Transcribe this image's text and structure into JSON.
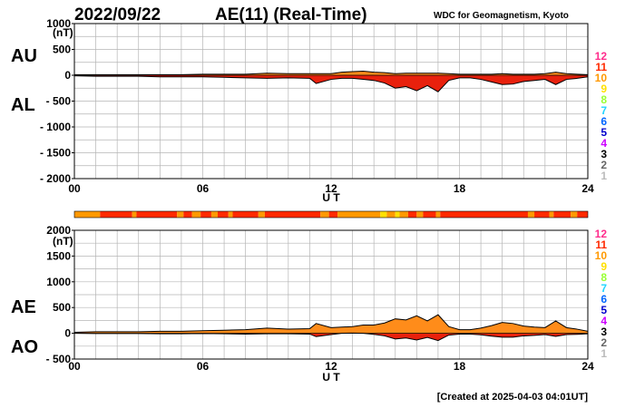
{
  "header": {
    "date": "2022/09/22",
    "title": "AE(11) (Real-Time)",
    "source": "WDC for Geomagnetism, Kyoto",
    "created": "[Created at 2025-04-03 04:01UT]"
  },
  "legend": {
    "levels": [
      {
        "label": "12",
        "color": "#ff2d8c"
      },
      {
        "label": "11",
        "color": "#ff2a00"
      },
      {
        "label": "10",
        "color": "#ff9900"
      },
      {
        "label": "9",
        "color": "#ffe000"
      },
      {
        "label": "8",
        "color": "#99ff33"
      },
      {
        "label": "7",
        "color": "#22d4ff"
      },
      {
        "label": "6",
        "color": "#0066ff"
      },
      {
        "label": "5",
        "color": "#0000cc"
      },
      {
        "label": "4",
        "color": "#cc00ff"
      },
      {
        "label": "3",
        "color": "#000000"
      },
      {
        "label": "2",
        "color": "#666666"
      },
      {
        "label": "1",
        "color": "#bbbbbb"
      }
    ]
  },
  "status_bar": {
    "segments": [
      {
        "start": 0.0,
        "end": 1.2,
        "level": "10"
      },
      {
        "start": 1.2,
        "end": 2.7,
        "level": "11"
      },
      {
        "start": 2.7,
        "end": 2.9,
        "level": "10"
      },
      {
        "start": 2.9,
        "end": 4.8,
        "level": "11"
      },
      {
        "start": 4.8,
        "end": 5.1,
        "level": "10"
      },
      {
        "start": 5.1,
        "end": 5.5,
        "level": "11"
      },
      {
        "start": 5.5,
        "end": 5.9,
        "level": "10"
      },
      {
        "start": 5.9,
        "end": 6.4,
        "level": "11"
      },
      {
        "start": 6.4,
        "end": 6.7,
        "level": "10"
      },
      {
        "start": 6.7,
        "end": 7.2,
        "level": "11"
      },
      {
        "start": 7.2,
        "end": 7.4,
        "level": "10"
      },
      {
        "start": 7.4,
        "end": 8.6,
        "level": "11"
      },
      {
        "start": 8.6,
        "end": 8.9,
        "level": "10"
      },
      {
        "start": 8.9,
        "end": 11.5,
        "level": "11"
      },
      {
        "start": 11.5,
        "end": 11.9,
        "level": "10"
      },
      {
        "start": 11.9,
        "end": 12.3,
        "level": "11"
      },
      {
        "start": 12.3,
        "end": 14.3,
        "level": "10"
      },
      {
        "start": 14.3,
        "end": 14.6,
        "level": "9"
      },
      {
        "start": 14.6,
        "end": 15.0,
        "level": "10"
      },
      {
        "start": 15.0,
        "end": 15.2,
        "level": "9"
      },
      {
        "start": 15.2,
        "end": 15.6,
        "level": "10"
      },
      {
        "start": 15.6,
        "end": 16.0,
        "level": "11"
      },
      {
        "start": 16.0,
        "end": 16.3,
        "level": "10"
      },
      {
        "start": 16.3,
        "end": 16.9,
        "level": "11"
      },
      {
        "start": 16.9,
        "end": 17.1,
        "level": "10"
      },
      {
        "start": 17.1,
        "end": 21.2,
        "level": "11"
      },
      {
        "start": 21.2,
        "end": 21.5,
        "level": "10"
      },
      {
        "start": 21.5,
        "end": 22.2,
        "level": "11"
      },
      {
        "start": 22.2,
        "end": 22.4,
        "level": "10"
      },
      {
        "start": 22.4,
        "end": 23.2,
        "level": "11"
      },
      {
        "start": 23.2,
        "end": 23.5,
        "level": "10"
      },
      {
        "start": 23.5,
        "end": 24.0,
        "level": "11"
      }
    ]
  },
  "chart_data": [
    {
      "type": "area",
      "title": "AE(11) (Real-Time)",
      "xlabel": "U T",
      "unit": "(nT)",
      "xlim": [
        0,
        24
      ],
      "ylim": [
        -2000,
        1000
      ],
      "xticks": [
        "00",
        "06",
        "12",
        "18",
        "24"
      ],
      "xtick_values": [
        0,
        6,
        12,
        18,
        24
      ],
      "yticks": [
        "1000",
        "500",
        "0",
        "- 500",
        "- 1000",
        "- 1500",
        "- 2000"
      ],
      "ytick_values": [
        1000,
        500,
        0,
        -500,
        -1000,
        -1500,
        -2000
      ],
      "left_labels": [
        "AU",
        "AL"
      ],
      "grid": true,
      "series": [
        {
          "name": "AU",
          "x": [
            0,
            1,
            2,
            3,
            4,
            5,
            6,
            7,
            8,
            9,
            10,
            11,
            11.3,
            12,
            12.5,
            13,
            13.5,
            14,
            14.5,
            15,
            15.5,
            16,
            16.5,
            17,
            17.5,
            18,
            18.5,
            19,
            19.5,
            20,
            20.5,
            21,
            21.5,
            22,
            22.5,
            23,
            23.5,
            24
          ],
          "y": [
            10,
            10,
            10,
            10,
            10,
            10,
            20,
            20,
            20,
            40,
            30,
            30,
            30,
            30,
            60,
            70,
            80,
            60,
            50,
            30,
            40,
            40,
            40,
            40,
            30,
            20,
            20,
            20,
            20,
            30,
            20,
            20,
            20,
            30,
            60,
            30,
            20,
            10
          ]
        },
        {
          "name": "AL",
          "x": [
            0,
            1,
            2,
            3,
            4,
            5,
            6,
            7,
            8,
            9,
            10,
            11,
            11.3,
            12,
            12.5,
            13,
            13.5,
            14,
            14.5,
            15,
            15.5,
            16,
            16.5,
            17,
            17.5,
            18,
            18.5,
            19,
            19.5,
            20,
            20.5,
            21,
            21.5,
            22,
            22.5,
            23,
            23.5,
            24
          ],
          "y": [
            -10,
            -20,
            -20,
            -20,
            -30,
            -30,
            -30,
            -40,
            -50,
            -60,
            -50,
            -60,
            -160,
            -80,
            -60,
            -60,
            -80,
            -100,
            -150,
            -250,
            -220,
            -300,
            -200,
            -320,
            -100,
            -50,
            -50,
            -80,
            -130,
            -180,
            -170,
            -120,
            -100,
            -80,
            -180,
            -80,
            -60,
            -30
          ]
        }
      ]
    },
    {
      "type": "area",
      "xlabel": "U T",
      "unit": "(nT)",
      "xlim": [
        0,
        24
      ],
      "ylim": [
        -500,
        2000
      ],
      "xticks": [
        "00",
        "06",
        "12",
        "18",
        "24"
      ],
      "xtick_values": [
        0,
        6,
        12,
        18,
        24
      ],
      "yticks": [
        "2000",
        "1500",
        "1000",
        "500",
        "0",
        "- 500"
      ],
      "ytick_values": [
        2000,
        1500,
        1000,
        500,
        0,
        -500
      ],
      "left_labels": [
        "AE",
        "AO"
      ],
      "grid": true,
      "series": [
        {
          "name": "AE",
          "x": [
            0,
            1,
            2,
            3,
            4,
            5,
            6,
            7,
            8,
            9,
            10,
            11,
            11.3,
            12,
            12.5,
            13,
            13.5,
            14,
            14.5,
            15,
            15.5,
            16,
            16.5,
            17,
            17.5,
            18,
            18.5,
            19,
            19.5,
            20,
            20.5,
            21,
            21.5,
            22,
            22.5,
            23,
            23.5,
            24
          ],
          "y": [
            20,
            30,
            30,
            30,
            40,
            40,
            50,
            60,
            70,
            100,
            80,
            90,
            190,
            110,
            120,
            130,
            160,
            160,
            200,
            280,
            260,
            340,
            240,
            360,
            130,
            70,
            70,
            100,
            150,
            210,
            190,
            140,
            120,
            110,
            240,
            110,
            80,
            40
          ]
        },
        {
          "name": "AO",
          "x": [
            0,
            1,
            2,
            3,
            4,
            5,
            6,
            7,
            8,
            9,
            10,
            11,
            11.3,
            12,
            12.5,
            13,
            13.5,
            14,
            14.5,
            15,
            15.5,
            16,
            16.5,
            17,
            17.5,
            18,
            18.5,
            19,
            19.5,
            20,
            20.5,
            21,
            21.5,
            22,
            22.5,
            23,
            23.5,
            24
          ],
          "y": [
            0,
            -5,
            -5,
            -5,
            -10,
            -10,
            -5,
            -10,
            -15,
            -10,
            -10,
            -15,
            -65,
            -25,
            0,
            5,
            0,
            -20,
            -50,
            -110,
            -90,
            -130,
            -80,
            -140,
            -35,
            -15,
            -15,
            -30,
            -55,
            -75,
            -75,
            -50,
            -40,
            -25,
            -60,
            -25,
            -20,
            -10
          ]
        }
      ]
    }
  ]
}
